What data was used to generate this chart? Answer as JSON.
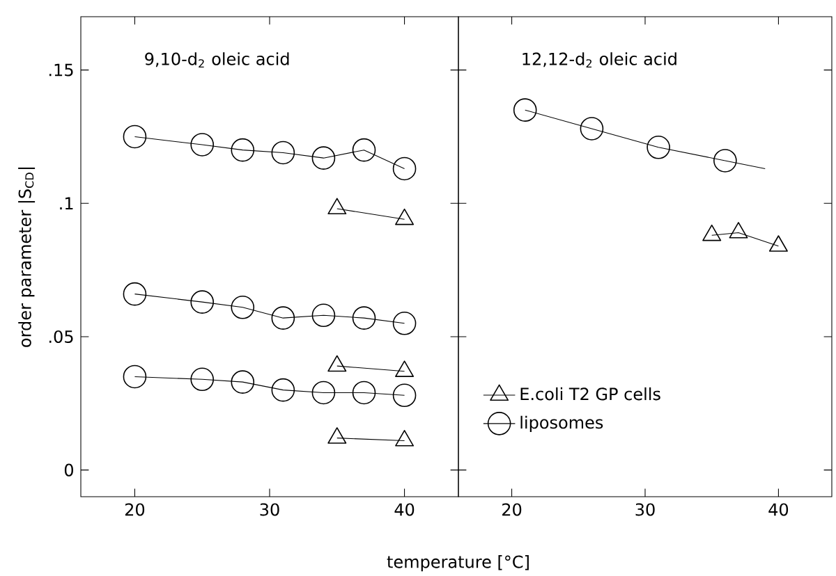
{
  "chart_data": [
    {
      "type": "line",
      "xlabel": "temperature  [°C]",
      "ylabel": "order parameter |S$_{CD}$|",
      "annotations": [
        "9,10-d$_{2}$ oleic acid"
      ],
      "xlim": [
        16,
        44
      ],
      "ylim": [
        -0.01,
        0.17
      ],
      "xticks": [
        20,
        30,
        40
      ],
      "yticks": [
        {
          "value": 0,
          "label": "0"
        },
        {
          "value": 0.05,
          "label": ".05"
        },
        {
          "value": 0.1,
          "label": ".1"
        },
        {
          "value": 0.15,
          "label": ".15"
        }
      ],
      "series": [
        {
          "color": "#000000",
          "marker": "circle",
          "x": [
            20,
            25,
            28,
            31,
            34,
            37,
            40
          ],
          "values": [
            0.125,
            0.122,
            0.12,
            0.119,
            0.117,
            0.12,
            0.113
          ]
        },
        {
          "color": "#000000",
          "marker": "circle",
          "x": [
            20,
            25,
            28,
            31,
            34,
            37,
            40
          ],
          "values": [
            0.066,
            0.063,
            0.061,
            0.057,
            0.058,
            0.057,
            0.055
          ]
        },
        {
          "color": "#000000",
          "marker": "circle",
          "x": [
            20,
            25,
            28,
            31,
            34,
            37,
            40
          ],
          "values": [
            0.035,
            0.034,
            0.033,
            0.03,
            0.029,
            0.029,
            0.028
          ]
        },
        {
          "color": "#000000",
          "marker": "triangle",
          "x": [
            35,
            40
          ],
          "values": [
            0.098,
            0.094
          ]
        },
        {
          "color": "#000000",
          "marker": "triangle",
          "x": [
            35,
            40
          ],
          "values": [
            0.039,
            0.037
          ]
        },
        {
          "color": "#000000",
          "marker": "triangle",
          "x": [
            35,
            40
          ],
          "values": [
            0.012,
            0.011
          ]
        }
      ]
    },
    {
      "type": "line",
      "annotations": [
        "12,12-d$_{2}$ oleic acid"
      ],
      "tick_labels": "x",
      "legend": "bottom left",
      "xlim": [
        16,
        44
      ],
      "ylim": [
        -0.01,
        0.17
      ],
      "xticks": [
        20,
        30,
        40
      ],
      "yticks": [
        {
          "value": 0,
          "label": null
        },
        {
          "value": 0.05,
          "label": null
        },
        {
          "value": 0.1,
          "label": null
        },
        {
          "value": 0.15,
          "label": null
        }
      ],
      "series": [
        {
          "name": "E.coli T2 GP cells",
          "color": "#000000",
          "marker": "triangle",
          "x": [
            35,
            37,
            40
          ],
          "values": [
            0.088,
            0.089,
            0.084
          ]
        },
        {
          "name": "liposomes",
          "color": "#000000",
          "marker": "circle",
          "x": [
            21,
            26,
            31,
            36
          ],
          "values": [
            0.135,
            0.128,
            0.121,
            0.116
          ]
        },
        {
          "color": "#000000",
          "marker": "none",
          "x": [
            36,
            39
          ],
          "values": [
            0.116,
            0.113
          ]
        }
      ]
    }
  ]
}
